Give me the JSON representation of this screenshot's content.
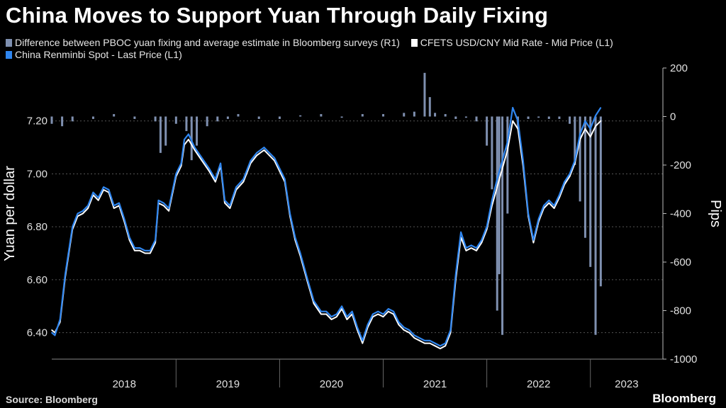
{
  "title": "China Moves to Support Yuan Through Daily Fixing",
  "source": "Source: Bloomberg",
  "brand": "Bloomberg",
  "legend": [
    {
      "label": "Difference between PBOC yuan fixing and average estimate in Bloomberg surveys (R1)",
      "color": "#7f90b0"
    },
    {
      "label": "CFETS USD/CNY Mid Rate - Mid Price (L1)",
      "color": "#ffffff"
    },
    {
      "label": "China Renminbi Spot - Last Price (L1)",
      "color": "#2f86f0"
    }
  ],
  "chart_data": {
    "type": "line",
    "title": "China Moves to Support Yuan Through Daily Fixing",
    "ylabel": "Yuan per dollar",
    "y2label": "Pips",
    "ylim": [
      6.3,
      7.4
    ],
    "y2lim": [
      -1000,
      200
    ],
    "yticks": [
      "7.20",
      "7.00",
      "6.80",
      "6.60",
      "6.40"
    ],
    "y2ticks": [
      "200",
      "0",
      "-200",
      "-400",
      "-600",
      "-800",
      "-1000"
    ],
    "xticks": [
      "2018",
      "2019",
      "2020",
      "2021",
      "2022",
      "2023"
    ],
    "xlim": [
      2017.8,
      2023.7
    ],
    "grid": true,
    "colors": {
      "spot": "#2f86f0",
      "fixing": "#ffffff",
      "diff": "#7f90b0"
    },
    "series": [
      {
        "name": "China Renminbi Spot - Last Price (L1)",
        "axis": "left",
        "points": [
          [
            2017.8,
            6.4
          ],
          [
            2017.83,
            6.39
          ],
          [
            2017.88,
            6.45
          ],
          [
            2017.93,
            6.62
          ],
          [
            2018.0,
            6.8
          ],
          [
            2018.05,
            6.85
          ],
          [
            2018.1,
            6.86
          ],
          [
            2018.15,
            6.88
          ],
          [
            2018.2,
            6.93
          ],
          [
            2018.25,
            6.91
          ],
          [
            2018.3,
            6.95
          ],
          [
            2018.35,
            6.94
          ],
          [
            2018.4,
            6.88
          ],
          [
            2018.45,
            6.89
          ],
          [
            2018.5,
            6.83
          ],
          [
            2018.55,
            6.76
          ],
          [
            2018.6,
            6.72
          ],
          [
            2018.65,
            6.72
          ],
          [
            2018.7,
            6.71
          ],
          [
            2018.75,
            6.71
          ],
          [
            2018.8,
            6.75
          ],
          [
            2018.83,
            6.9
          ],
          [
            2018.88,
            6.89
          ],
          [
            2018.93,
            6.87
          ],
          [
            2019.0,
            7.0
          ],
          [
            2019.05,
            7.04
          ],
          [
            2019.08,
            7.13
          ],
          [
            2019.12,
            7.15
          ],
          [
            2019.18,
            7.1
          ],
          [
            2019.25,
            7.06
          ],
          [
            2019.32,
            7.02
          ],
          [
            2019.38,
            6.98
          ],
          [
            2019.43,
            7.04
          ],
          [
            2019.47,
            6.9
          ],
          [
            2019.52,
            6.88
          ],
          [
            2019.58,
            6.95
          ],
          [
            2019.65,
            6.98
          ],
          [
            2019.72,
            7.05
          ],
          [
            2019.78,
            7.08
          ],
          [
            2019.85,
            7.1
          ],
          [
            2019.9,
            7.08
          ],
          [
            2019.95,
            7.06
          ],
          [
            2020.0,
            7.02
          ],
          [
            2020.05,
            6.98
          ],
          [
            2020.1,
            6.85
          ],
          [
            2020.15,
            6.76
          ],
          [
            2020.2,
            6.7
          ],
          [
            2020.27,
            6.6
          ],
          [
            2020.33,
            6.52
          ],
          [
            2020.4,
            6.48
          ],
          [
            2020.45,
            6.48
          ],
          [
            2020.5,
            6.46
          ],
          [
            2020.55,
            6.47
          ],
          [
            2020.6,
            6.5
          ],
          [
            2020.65,
            6.46
          ],
          [
            2020.7,
            6.48
          ],
          [
            2020.75,
            6.42
          ],
          [
            2020.8,
            6.37
          ],
          [
            2020.85,
            6.43
          ],
          [
            2020.9,
            6.47
          ],
          [
            2020.95,
            6.48
          ],
          [
            2021.0,
            6.47
          ],
          [
            2021.05,
            6.49
          ],
          [
            2021.1,
            6.48
          ],
          [
            2021.15,
            6.44
          ],
          [
            2021.2,
            6.42
          ],
          [
            2021.25,
            6.41
          ],
          [
            2021.3,
            6.39
          ],
          [
            2021.35,
            6.38
          ],
          [
            2021.4,
            6.37
          ],
          [
            2021.45,
            6.37
          ],
          [
            2021.5,
            6.36
          ],
          [
            2021.55,
            6.35
          ],
          [
            2021.6,
            6.36
          ],
          [
            2021.65,
            6.41
          ],
          [
            2021.7,
            6.62
          ],
          [
            2021.75,
            6.78
          ],
          [
            2021.8,
            6.72
          ],
          [
            2021.85,
            6.73
          ],
          [
            2021.9,
            6.72
          ],
          [
            2021.95,
            6.75
          ],
          [
            2022.0,
            6.8
          ],
          [
            2022.05,
            6.9
          ],
          [
            2022.1,
            6.98
          ],
          [
            2022.15,
            7.05
          ],
          [
            2022.2,
            7.12
          ],
          [
            2022.25,
            7.25
          ],
          [
            2022.3,
            7.2
          ],
          [
            2022.35,
            7.05
          ],
          [
            2022.4,
            6.85
          ],
          [
            2022.45,
            6.75
          ],
          [
            2022.5,
            6.83
          ],
          [
            2022.55,
            6.88
          ],
          [
            2022.6,
            6.9
          ],
          [
            2022.65,
            6.88
          ],
          [
            2022.7,
            6.92
          ],
          [
            2022.75,
            6.97
          ],
          [
            2022.8,
            7.0
          ],
          [
            2022.85,
            7.05
          ],
          [
            2022.9,
            7.15
          ],
          [
            2022.95,
            7.2
          ],
          [
            2023.0,
            7.17
          ],
          [
            2023.05,
            7.22
          ],
          [
            2023.1,
            7.25
          ]
        ]
      },
      {
        "name": "CFETS USD/CNY Mid Rate - Mid Price (L1)",
        "axis": "left",
        "points": [
          [
            2017.8,
            6.41
          ],
          [
            2017.83,
            6.4
          ],
          [
            2017.88,
            6.44
          ],
          [
            2017.93,
            6.61
          ],
          [
            2018.0,
            6.79
          ],
          [
            2018.05,
            6.84
          ],
          [
            2018.1,
            6.85
          ],
          [
            2018.15,
            6.87
          ],
          [
            2018.2,
            6.92
          ],
          [
            2018.25,
            6.9
          ],
          [
            2018.3,
            6.94
          ],
          [
            2018.35,
            6.93
          ],
          [
            2018.4,
            6.87
          ],
          [
            2018.45,
            6.88
          ],
          [
            2018.5,
            6.82
          ],
          [
            2018.55,
            6.75
          ],
          [
            2018.6,
            6.71
          ],
          [
            2018.65,
            6.71
          ],
          [
            2018.7,
            6.7
          ],
          [
            2018.75,
            6.7
          ],
          [
            2018.8,
            6.74
          ],
          [
            2018.83,
            6.89
          ],
          [
            2018.88,
            6.88
          ],
          [
            2018.93,
            6.86
          ],
          [
            2019.0,
            6.99
          ],
          [
            2019.05,
            7.03
          ],
          [
            2019.08,
            7.11
          ],
          [
            2019.12,
            7.13
          ],
          [
            2019.18,
            7.09
          ],
          [
            2019.25,
            7.05
          ],
          [
            2019.32,
            7.01
          ],
          [
            2019.38,
            6.97
          ],
          [
            2019.43,
            7.03
          ],
          [
            2019.47,
            6.89
          ],
          [
            2019.52,
            6.87
          ],
          [
            2019.58,
            6.94
          ],
          [
            2019.65,
            6.97
          ],
          [
            2019.72,
            7.04
          ],
          [
            2019.78,
            7.07
          ],
          [
            2019.85,
            7.09
          ],
          [
            2019.9,
            7.07
          ],
          [
            2019.95,
            7.05
          ],
          [
            2020.0,
            7.01
          ],
          [
            2020.05,
            6.97
          ],
          [
            2020.1,
            6.84
          ],
          [
            2020.15,
            6.75
          ],
          [
            2020.2,
            6.69
          ],
          [
            2020.27,
            6.59
          ],
          [
            2020.33,
            6.51
          ],
          [
            2020.4,
            6.47
          ],
          [
            2020.45,
            6.47
          ],
          [
            2020.5,
            6.45
          ],
          [
            2020.55,
            6.46
          ],
          [
            2020.6,
            6.49
          ],
          [
            2020.65,
            6.45
          ],
          [
            2020.7,
            6.47
          ],
          [
            2020.75,
            6.41
          ],
          [
            2020.8,
            6.36
          ],
          [
            2020.85,
            6.42
          ],
          [
            2020.9,
            6.46
          ],
          [
            2020.95,
            6.47
          ],
          [
            2021.0,
            6.46
          ],
          [
            2021.05,
            6.48
          ],
          [
            2021.1,
            6.47
          ],
          [
            2021.15,
            6.43
          ],
          [
            2021.2,
            6.41
          ],
          [
            2021.25,
            6.4
          ],
          [
            2021.3,
            6.38
          ],
          [
            2021.35,
            6.37
          ],
          [
            2021.4,
            6.36
          ],
          [
            2021.45,
            6.36
          ],
          [
            2021.5,
            6.35
          ],
          [
            2021.55,
            6.34
          ],
          [
            2021.6,
            6.35
          ],
          [
            2021.65,
            6.4
          ],
          [
            2021.7,
            6.6
          ],
          [
            2021.75,
            6.76
          ],
          [
            2021.8,
            6.71
          ],
          [
            2021.85,
            6.72
          ],
          [
            2021.9,
            6.71
          ],
          [
            2021.95,
            6.74
          ],
          [
            2022.0,
            6.79
          ],
          [
            2022.05,
            6.88
          ],
          [
            2022.1,
            6.95
          ],
          [
            2022.15,
            7.02
          ],
          [
            2022.2,
            7.09
          ],
          [
            2022.25,
            7.2
          ],
          [
            2022.3,
            7.17
          ],
          [
            2022.35,
            7.03
          ],
          [
            2022.4,
            6.84
          ],
          [
            2022.45,
            6.74
          ],
          [
            2022.5,
            6.82
          ],
          [
            2022.55,
            6.87
          ],
          [
            2022.6,
            6.89
          ],
          [
            2022.65,
            6.87
          ],
          [
            2022.7,
            6.91
          ],
          [
            2022.75,
            6.96
          ],
          [
            2022.8,
            6.99
          ],
          [
            2022.85,
            7.04
          ],
          [
            2022.9,
            7.13
          ],
          [
            2022.95,
            7.17
          ],
          [
            2023.0,
            7.14
          ],
          [
            2023.05,
            7.18
          ],
          [
            2023.1,
            7.2
          ]
        ]
      },
      {
        "name": "Difference between PBOC yuan fixing and average estimate in Bloomberg surveys (R1)",
        "axis": "right",
        "type": "bar",
        "points": [
          [
            2017.8,
            -30
          ],
          [
            2017.9,
            -40
          ],
          [
            2018.0,
            -20
          ],
          [
            2018.2,
            -10
          ],
          [
            2018.4,
            10
          ],
          [
            2018.6,
            -10
          ],
          [
            2018.8,
            -20
          ],
          [
            2018.85,
            -150
          ],
          [
            2018.9,
            -120
          ],
          [
            2019.0,
            -30
          ],
          [
            2019.1,
            -60
          ],
          [
            2019.15,
            -180
          ],
          [
            2019.2,
            -120
          ],
          [
            2019.3,
            -40
          ],
          [
            2019.4,
            -20
          ],
          [
            2019.5,
            -10
          ],
          [
            2019.6,
            10
          ],
          [
            2019.8,
            -10
          ],
          [
            2020.0,
            -10
          ],
          [
            2020.2,
            5
          ],
          [
            2020.4,
            10
          ],
          [
            2020.6,
            -5
          ],
          [
            2020.8,
            10
          ],
          [
            2021.0,
            10
          ],
          [
            2021.2,
            15
          ],
          [
            2021.3,
            20
          ],
          [
            2021.4,
            180
          ],
          [
            2021.45,
            80
          ],
          [
            2021.5,
            15
          ],
          [
            2021.6,
            10
          ],
          [
            2021.7,
            -10
          ],
          [
            2021.8,
            -5
          ],
          [
            2021.9,
            -20
          ],
          [
            2022.0,
            -120
          ],
          [
            2022.05,
            -300
          ],
          [
            2022.1,
            -800
          ],
          [
            2022.12,
            -650
          ],
          [
            2022.15,
            -900
          ],
          [
            2022.2,
            -400
          ],
          [
            2022.3,
            -50
          ],
          [
            2022.4,
            -10
          ],
          [
            2022.5,
            -5
          ],
          [
            2022.6,
            -10
          ],
          [
            2022.7,
            -10
          ],
          [
            2022.8,
            -30
          ],
          [
            2022.85,
            -200
          ],
          [
            2022.9,
            -350
          ],
          [
            2022.95,
            -500
          ],
          [
            2023.0,
            -620
          ],
          [
            2023.05,
            -900
          ],
          [
            2023.1,
            -700
          ]
        ]
      }
    ]
  }
}
